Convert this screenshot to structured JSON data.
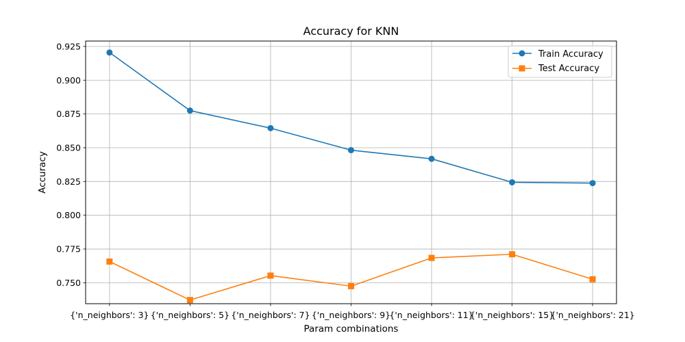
{
  "chart_data": {
    "type": "line",
    "title": "Accuracy for KNN",
    "xlabel": "Param combinations",
    "ylabel": "Accuracy",
    "categories": [
      "{'n_neighbors': 3}",
      "{'n_neighbors': 5}",
      "{'n_neighbors': 7}",
      "{'n_neighbors': 9}",
      "{'n_neighbors': 11}",
      "{'n_neighbors': 15}",
      "{'n_neighbors': 21}"
    ],
    "ylim": [
      0.7345,
      0.929
    ],
    "yticks": [
      "0.750",
      "0.775",
      "0.800",
      "0.825",
      "0.850",
      "0.875",
      "0.900",
      "0.925"
    ],
    "grid": true,
    "legend_position": "upper right",
    "series": [
      {
        "name": "Train Accuracy",
        "color": "#1f77b4",
        "marker": "circle",
        "values": [
          0.9205,
          0.8775,
          0.8645,
          0.8482,
          0.8418,
          0.8244,
          0.8238
        ]
      },
      {
        "name": "Test Accuracy",
        "color": "#ff7f0e",
        "marker": "square",
        "values": [
          0.7657,
          0.7372,
          0.7553,
          0.7475,
          0.7684,
          0.7711,
          0.7526
        ]
      }
    ]
  }
}
